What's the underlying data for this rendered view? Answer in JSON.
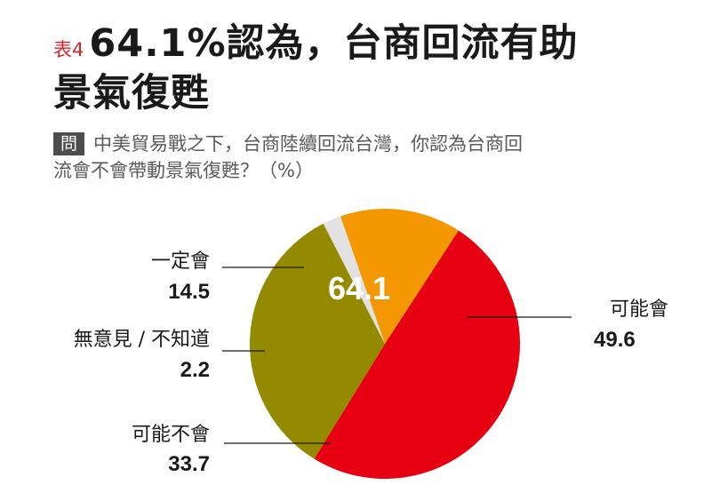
{
  "title": {
    "table_tag": "表4",
    "line1": "64.1%認為，台商回流有助",
    "line2": "景氣復甦"
  },
  "question": {
    "badge": "問",
    "line1": "中美貿易戰之下，台商陸續回流台灣，你認為台商回",
    "line2": "流會不會帶動景氣復甦？（%）"
  },
  "chart_data": {
    "type": "pie",
    "unit": "%",
    "start_angle_deg": 123,
    "direction": "clockwise",
    "center_label": "64.1",
    "slices": [
      {
        "label": "可能會",
        "value": 49.6,
        "color": "#e60012"
      },
      {
        "label": "可能不會",
        "value": 33.7,
        "color": "#948a00"
      },
      {
        "label": "無意見／不知道",
        "label_display": "無意見 / 不知道",
        "value": 2.2,
        "color": "#e2e2e2"
      },
      {
        "label": "一定會",
        "value": 14.5,
        "color": "#f39800"
      }
    ]
  }
}
